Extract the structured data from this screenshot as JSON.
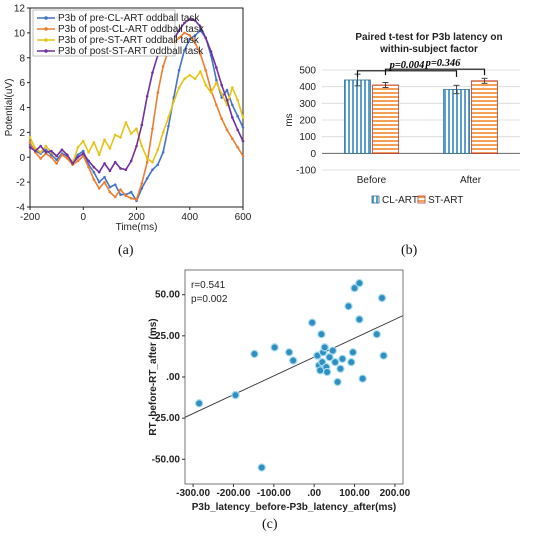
{
  "captions": {
    "a": "(a)",
    "b": "(b)",
    "c": "(c)"
  },
  "chart_data": [
    {
      "id": "a",
      "type": "line",
      "xlabel": "Time(ms)",
      "ylabel": "Potential(uV)",
      "xlim": [
        -200,
        600
      ],
      "ylim": [
        -4,
        12
      ],
      "xticks": [
        -200,
        0,
        200,
        400,
        600
      ],
      "yticks": [
        -4,
        -2,
        0,
        2,
        4,
        6,
        8,
        10,
        12
      ],
      "legend_position": "top-left",
      "colors": [
        "#4472c4",
        "#ed7d31",
        "#e6c318",
        "#7030a0"
      ],
      "series": [
        {
          "name": "P3b of pre-CL-ART oddball task",
          "x": [
            -200,
            -180,
            -160,
            -140,
            -120,
            -100,
            -80,
            -60,
            -40,
            -20,
            0,
            20,
            40,
            60,
            80,
            100,
            120,
            140,
            160,
            180,
            200,
            220,
            240,
            260,
            280,
            300,
            320,
            340,
            360,
            380,
            400,
            420,
            440,
            460,
            480,
            500,
            520,
            540,
            560,
            580,
            600
          ],
          "values": [
            1.0,
            0.5,
            0.3,
            0.6,
            0.2,
            -0.2,
            0.3,
            0.1,
            -0.4,
            0.2,
            0.5,
            -0.6,
            -1.2,
            -2.0,
            -1.6,
            -2.4,
            -2.2,
            -3.0,
            -3.0,
            -2.8,
            -3.5,
            -2.5,
            -1.7,
            -1.0,
            -0.6,
            0.4,
            2.5,
            4.8,
            7.0,
            8.6,
            9.5,
            9.8,
            10.2,
            9.6,
            8.2,
            6.2,
            4.8,
            5.4,
            4.2,
            3.3,
            2.4
          ]
        },
        {
          "name": "P3b of post-CL-ART oddball task",
          "x": [
            -200,
            -180,
            -160,
            -140,
            -120,
            -100,
            -80,
            -60,
            -40,
            -20,
            0,
            20,
            40,
            60,
            80,
            100,
            120,
            140,
            160,
            180,
            200,
            220,
            240,
            260,
            280,
            300,
            320,
            340,
            360,
            380,
            400,
            420,
            440,
            460,
            480,
            500,
            520,
            540,
            560,
            580,
            600
          ],
          "values": [
            1.2,
            0.4,
            -0.1,
            0.3,
            0.0,
            -0.5,
            0.2,
            -0.1,
            -0.6,
            -0.3,
            0.1,
            -0.8,
            -1.8,
            -2.5,
            -2.0,
            -2.8,
            -3.2,
            -2.6,
            -3.1,
            -3.3,
            -3.4,
            -2.1,
            -0.4,
            2.3,
            5.2,
            7.3,
            8.6,
            9.2,
            9.6,
            10.0,
            9.8,
            9.2,
            8.3,
            7.0,
            5.4,
            4.2,
            3.1,
            2.2,
            1.5,
            0.8,
            0.1
          ]
        },
        {
          "name": "P3b of pre-ST-ART oddball task",
          "x": [
            -200,
            -180,
            -160,
            -140,
            -120,
            -100,
            -80,
            -60,
            -40,
            -20,
            0,
            20,
            40,
            60,
            80,
            100,
            120,
            140,
            160,
            180,
            200,
            220,
            240,
            260,
            280,
            300,
            320,
            340,
            360,
            380,
            400,
            420,
            440,
            460,
            480,
            500,
            520,
            540,
            560,
            580,
            600
          ],
          "values": [
            1.6,
            0.7,
            0.4,
            0.9,
            0.4,
            0.1,
            0.6,
            0.2,
            -0.5,
            0.8,
            1.3,
            0.4,
            1.2,
            0.2,
            1.4,
            0.7,
            1.8,
            1.6,
            2.8,
            1.9,
            2.3,
            0.9,
            -0.1,
            -0.4,
            0.6,
            2.0,
            3.2,
            4.5,
            5.6,
            6.3,
            6.6,
            6.3,
            6.9,
            5.8,
            5.2,
            6.0,
            5.1,
            4.2,
            5.6,
            4.6,
            3.2
          ]
        },
        {
          "name": "P3b of post-ST-ART oddball task",
          "x": [
            -200,
            -180,
            -160,
            -140,
            -120,
            -100,
            -80,
            -60,
            -40,
            -20,
            0,
            20,
            40,
            60,
            80,
            100,
            120,
            140,
            160,
            180,
            200,
            220,
            240,
            260,
            280,
            300,
            320,
            340,
            360,
            380,
            400,
            420,
            440,
            460,
            480,
            500,
            520,
            540,
            560,
            580,
            600
          ],
          "values": [
            0.8,
            0.5,
            0.9,
            0.4,
            0.5,
            0.1,
            0.6,
            0.2,
            -0.5,
            0.0,
            0.3,
            -0.3,
            -0.8,
            -1.2,
            -0.5,
            -1.1,
            -0.4,
            -0.9,
            -1.0,
            -0.3,
            0.9,
            2.6,
            4.9,
            6.8,
            8.2,
            8.9,
            9.3,
            9.5,
            10.2,
            10.8,
            11.1,
            11.0,
            10.5,
            9.6,
            8.5,
            7.2,
            5.8,
            4.6,
            3.2,
            2.2,
            1.3
          ]
        }
      ]
    },
    {
      "id": "b",
      "type": "bar",
      "title": "Paired t-test for P3b latency on within-subject factor",
      "ylabel": "ms",
      "ylim": [
        -100,
        500
      ],
      "yticks": [
        -100,
        0,
        100,
        200,
        300,
        400,
        500
      ],
      "categories": [
        "Before",
        "After"
      ],
      "legend_position": "bottom",
      "series": [
        {
          "name": "CL-ART",
          "color": "#5aa0c8",
          "values": [
            440,
            383
          ],
          "error": [
            35,
            25
          ]
        },
        {
          "name": "ST-ART",
          "color": "#f5a057",
          "values": [
            410,
            435
          ],
          "error": [
            15,
            15
          ]
        }
      ],
      "annotations": [
        "p=0.004",
        "p=0.346"
      ]
    },
    {
      "id": "c",
      "type": "scatter",
      "xlabel": "P3b_latency_before-P3b_latency_after(ms)",
      "ylabel": "RT_before-RT_after (ms)",
      "xlim": [
        -320,
        220
      ],
      "ylim": [
        -65,
        65
      ],
      "xticks": [
        -300,
        -200,
        -100,
        0,
        100,
        200
      ],
      "xtick_labels": [
        "-300.00",
        "-200.00",
        "-100.00",
        ".00",
        "100.00",
        "200.00"
      ],
      "yticks": [
        -50,
        -25,
        0,
        25,
        50
      ],
      "ytick_labels": [
        "-50.00",
        "-25.00",
        ".00",
        "25.00",
        "50.00"
      ],
      "annotations": [
        "r=0.541",
        "p=0.002"
      ],
      "point_color": "#2e8fc0",
      "points": [
        [
          -285,
          -16
        ],
        [
          -195,
          -11
        ],
        [
          -130,
          -55
        ],
        [
          -148,
          14
        ],
        [
          -98,
          18
        ],
        [
          -62,
          15
        ],
        [
          -52,
          10
        ],
        [
          -5,
          33
        ],
        [
          8,
          13
        ],
        [
          12,
          7
        ],
        [
          15,
          4
        ],
        [
          20,
          9
        ],
        [
          22,
          15
        ],
        [
          26,
          18
        ],
        [
          18,
          26
        ],
        [
          30,
          6
        ],
        [
          32,
          3
        ],
        [
          38,
          12
        ],
        [
          46,
          16
        ],
        [
          52,
          9
        ],
        [
          58,
          -3
        ],
        [
          65,
          5
        ],
        [
          70,
          11
        ],
        [
          85,
          43
        ],
        [
          92,
          9
        ],
        [
          96,
          15
        ],
        [
          100,
          54
        ],
        [
          112,
          57
        ],
        [
          112,
          35
        ],
        [
          120,
          -1
        ],
        [
          155,
          26
        ],
        [
          168,
          48
        ],
        [
          172,
          13
        ]
      ],
      "fit": {
        "x": [
          -320,
          220
        ],
        "y": [
          -24.5,
          37.3
        ]
      }
    }
  ]
}
